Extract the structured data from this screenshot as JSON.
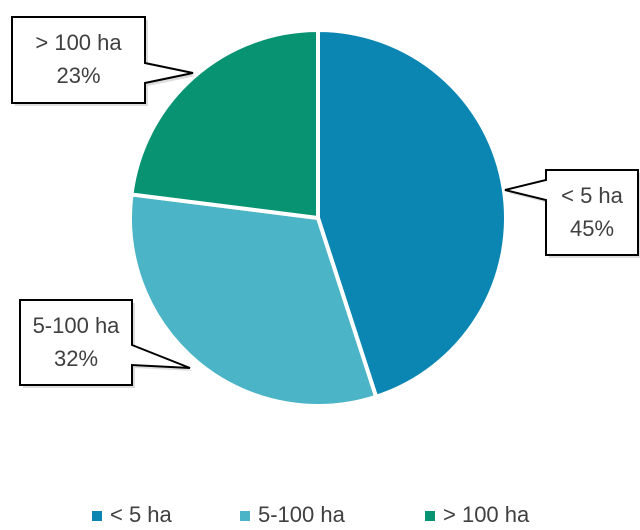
{
  "chart_data": {
    "type": "pie",
    "categories": [
      "< 5 ha",
      "5-100 ha",
      "> 100 ha"
    ],
    "values": [
      45,
      32,
      23
    ],
    "value_labels": [
      "45%",
      "32%",
      "23%"
    ],
    "colors": [
      "#0b86b2",
      "#4bb4c6",
      "#089372"
    ],
    "legend": "bottom"
  }
}
